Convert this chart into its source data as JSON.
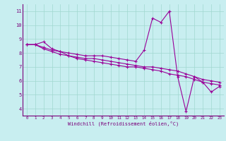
{
  "xlabel": "Windchill (Refroidissement éolien,°C)",
  "background_color": "#c8eef0",
  "grid_color": "#a0d8d0",
  "line_color": "#990099",
  "spine_color": "#7a007a",
  "tick_color": "#7a007a",
  "xlim": [
    -0.5,
    23.5
  ],
  "ylim": [
    3.5,
    11.5
  ],
  "yticks": [
    4,
    5,
    6,
    7,
    8,
    9,
    10,
    11
  ],
  "xticks": [
    0,
    1,
    2,
    3,
    4,
    5,
    6,
    7,
    8,
    9,
    10,
    11,
    12,
    13,
    14,
    15,
    16,
    17,
    18,
    19,
    20,
    21,
    22,
    23
  ],
  "series": [
    [
      8.6,
      8.6,
      8.8,
      8.3,
      8.1,
      8.0,
      7.9,
      7.8,
      7.8,
      7.8,
      7.7,
      7.6,
      7.5,
      7.4,
      8.2,
      10.5,
      10.2,
      11.0,
      6.3,
      3.8,
      6.3,
      5.9,
      5.2,
      5.6
    ],
    [
      8.6,
      8.6,
      8.4,
      8.2,
      8.1,
      7.8,
      7.7,
      7.6,
      7.6,
      7.5,
      7.4,
      7.3,
      7.2,
      7.1,
      7.0,
      7.0,
      6.9,
      6.8,
      6.7,
      6.5,
      6.3,
      6.1,
      6.0,
      5.9
    ],
    [
      8.6,
      8.6,
      8.3,
      8.1,
      7.9,
      7.8,
      7.6,
      7.5,
      7.4,
      7.3,
      7.2,
      7.1,
      7.0,
      7.0,
      6.9,
      6.8,
      6.7,
      6.5,
      6.4,
      6.3,
      6.1,
      5.9,
      5.8,
      5.7
    ]
  ]
}
